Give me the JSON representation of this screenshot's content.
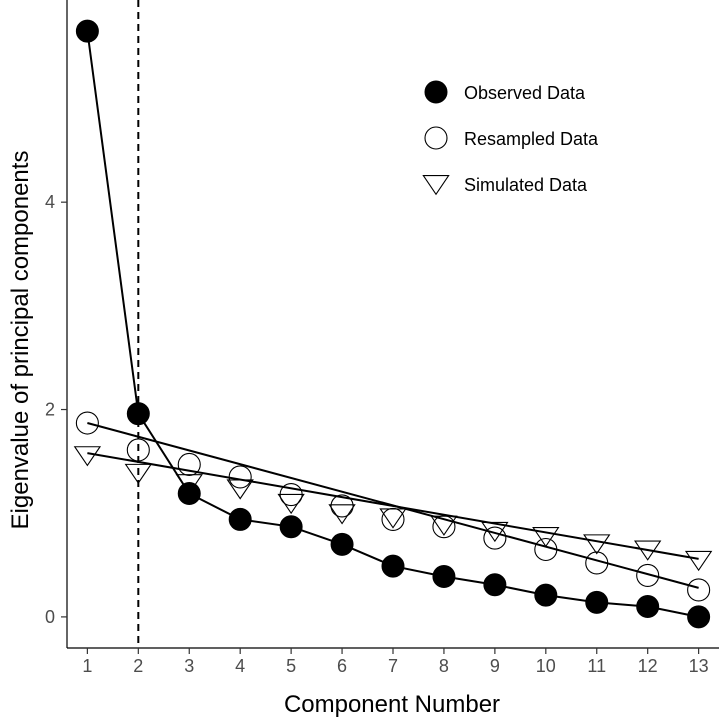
{
  "chart_data": {
    "type": "line",
    "title": "",
    "xlabel": "Component Number",
    "ylabel": "Eigenvalue of principal components",
    "x": [
      1,
      2,
      3,
      4,
      5,
      6,
      7,
      8,
      9,
      10,
      11,
      12,
      13
    ],
    "xlim": [
      0.6,
      13.4
    ],
    "ylim": [
      -0.3,
      5.95
    ],
    "x_ticks": [
      1,
      2,
      3,
      4,
      5,
      6,
      7,
      8,
      9,
      10,
      11,
      12,
      13
    ],
    "y_ticks": [
      0,
      2,
      4
    ],
    "grid": false,
    "legend_position": "top-right",
    "reference_line": {
      "x": 2,
      "style": "dashed"
    },
    "series": [
      {
        "name": "Observed Data",
        "marker": "filled-circle",
        "values": [
          5.65,
          1.96,
          1.19,
          0.94,
          0.87,
          0.7,
          0.49,
          0.39,
          0.31,
          0.21,
          0.14,
          0.1,
          0.0
        ]
      },
      {
        "name": "Resampled Data",
        "marker": "open-circle",
        "values": [
          1.87,
          1.61,
          1.47,
          1.35,
          1.18,
          1.07,
          0.94,
          0.87,
          0.76,
          0.65,
          0.52,
          0.4,
          0.26
        ],
        "fit_line": [
          1.87,
          0.28
        ]
      },
      {
        "name": "Simulated Data",
        "marker": "open-triangle-down",
        "values": [
          1.56,
          1.39,
          1.29,
          1.24,
          1.1,
          1.0,
          0.96,
          0.89,
          0.83,
          0.78,
          0.71,
          0.65,
          0.55
        ],
        "fit_line": [
          1.58,
          0.56
        ]
      }
    ]
  }
}
